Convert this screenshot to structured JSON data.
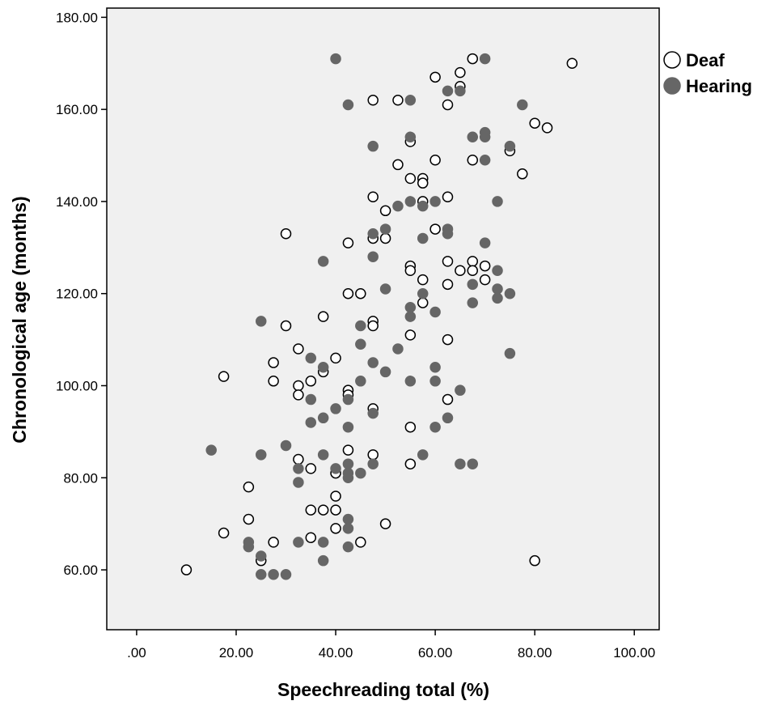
{
  "chart_data": {
    "type": "scatter",
    "title": "",
    "xlabel": "Speechreading total (%)",
    "ylabel": "Chronological age (months)",
    "xlim": [
      -6,
      105
    ],
    "ylim": [
      47,
      182
    ],
    "grid": false,
    "legend_position": "top-right (outside plot)",
    "x_ticks": [
      0,
      20,
      40,
      60,
      80,
      100
    ],
    "x_tick_labels": [
      ".00",
      "20.00",
      "40.00",
      "60.00",
      "80.00",
      "100.00"
    ],
    "y_ticks": [
      60,
      80,
      100,
      120,
      140,
      160,
      180
    ],
    "y_tick_labels": [
      "60.00",
      "80.00",
      "100.00",
      "120.00",
      "140.00",
      "160.00",
      "180.00"
    ],
    "plot_background": "#f0f0f0",
    "series": [
      {
        "name": "Deaf",
        "marker": "open-circle",
        "color": "#000000",
        "points": [
          [
            10,
            60
          ],
          [
            17.5,
            102
          ],
          [
            17.5,
            68
          ],
          [
            22.5,
            78
          ],
          [
            22.5,
            71
          ],
          [
            25,
            62
          ],
          [
            27.5,
            105
          ],
          [
            27.5,
            101
          ],
          [
            27.5,
            66
          ],
          [
            30,
            133
          ],
          [
            30,
            113
          ],
          [
            32.5,
            108
          ],
          [
            32.5,
            100
          ],
          [
            32.5,
            98
          ],
          [
            32.5,
            84
          ],
          [
            35,
            101
          ],
          [
            35,
            82
          ],
          [
            35,
            73
          ],
          [
            35,
            67
          ],
          [
            37.5,
            115
          ],
          [
            37.5,
            103
          ],
          [
            37.5,
            73
          ],
          [
            40,
            106
          ],
          [
            40,
            81
          ],
          [
            40,
            76
          ],
          [
            40,
            73
          ],
          [
            40,
            69
          ],
          [
            42.5,
            131
          ],
          [
            42.5,
            120
          ],
          [
            42.5,
            99
          ],
          [
            42.5,
            98
          ],
          [
            42.5,
            86
          ],
          [
            45,
            120
          ],
          [
            45,
            66
          ],
          [
            47.5,
            162
          ],
          [
            47.5,
            141
          ],
          [
            47.5,
            132
          ],
          [
            47.5,
            114
          ],
          [
            47.5,
            113
          ],
          [
            47.5,
            95
          ],
          [
            47.5,
            85
          ],
          [
            50,
            138
          ],
          [
            50,
            132
          ],
          [
            50,
            70
          ],
          [
            52.5,
            162
          ],
          [
            52.5,
            148
          ],
          [
            55,
            153
          ],
          [
            55,
            145
          ],
          [
            55,
            126
          ],
          [
            55,
            125
          ],
          [
            55,
            111
          ],
          [
            55,
            91
          ],
          [
            55,
            83
          ],
          [
            57.5,
            145
          ],
          [
            57.5,
            144
          ],
          [
            57.5,
            140
          ],
          [
            57.5,
            123
          ],
          [
            57.5,
            118
          ],
          [
            60,
            167
          ],
          [
            60,
            149
          ],
          [
            60,
            134
          ],
          [
            62.5,
            161
          ],
          [
            62.5,
            141
          ],
          [
            62.5,
            127
          ],
          [
            62.5,
            122
          ],
          [
            62.5,
            110
          ],
          [
            62.5,
            97
          ],
          [
            65,
            168
          ],
          [
            65,
            165
          ],
          [
            65,
            125
          ],
          [
            67.5,
            171
          ],
          [
            67.5,
            149
          ],
          [
            67.5,
            127
          ],
          [
            67.5,
            125
          ],
          [
            70,
            126
          ],
          [
            70,
            123
          ],
          [
            75,
            151
          ],
          [
            77.5,
            146
          ],
          [
            80,
            157
          ],
          [
            80,
            62
          ],
          [
            82.5,
            156
          ],
          [
            87.5,
            170
          ]
        ]
      },
      {
        "name": "Hearing",
        "marker": "filled-circle",
        "color": "#666666",
        "points": [
          [
            15,
            86
          ],
          [
            22.5,
            66
          ],
          [
            22.5,
            65
          ],
          [
            25,
            114
          ],
          [
            25,
            85
          ],
          [
            25,
            63
          ],
          [
            25,
            59
          ],
          [
            27.5,
            59
          ],
          [
            30,
            87
          ],
          [
            30,
            59
          ],
          [
            32.5,
            82
          ],
          [
            32.5,
            79
          ],
          [
            32.5,
            66
          ],
          [
            35,
            106
          ],
          [
            35,
            97
          ],
          [
            35,
            92
          ],
          [
            37.5,
            127
          ],
          [
            37.5,
            104
          ],
          [
            37.5,
            93
          ],
          [
            37.5,
            85
          ],
          [
            37.5,
            66
          ],
          [
            37.5,
            62
          ],
          [
            40,
            95
          ],
          [
            40,
            82
          ],
          [
            42.5,
            161
          ],
          [
            42.5,
            97
          ],
          [
            42.5,
            91
          ],
          [
            42.5,
            83
          ],
          [
            42.5,
            81
          ],
          [
            42.5,
            80
          ],
          [
            42.5,
            71
          ],
          [
            42.5,
            69
          ],
          [
            42.5,
            65
          ],
          [
            40,
            171
          ],
          [
            45,
            113
          ],
          [
            45,
            109
          ],
          [
            45,
            101
          ],
          [
            45,
            81
          ],
          [
            47.5,
            152
          ],
          [
            47.5,
            133
          ],
          [
            47.5,
            128
          ],
          [
            47.5,
            105
          ],
          [
            47.5,
            94
          ],
          [
            47.5,
            83
          ],
          [
            50,
            134
          ],
          [
            50,
            121
          ],
          [
            50,
            103
          ],
          [
            52.5,
            139
          ],
          [
            52.5,
            108
          ],
          [
            55,
            162
          ],
          [
            55,
            154
          ],
          [
            55,
            140
          ],
          [
            55,
            117
          ],
          [
            55,
            115
          ],
          [
            55,
            101
          ],
          [
            57.5,
            139
          ],
          [
            57.5,
            132
          ],
          [
            57.5,
            120
          ],
          [
            57.5,
            85
          ],
          [
            60,
            140
          ],
          [
            60,
            116
          ],
          [
            60,
            104
          ],
          [
            60,
            101
          ],
          [
            60,
            91
          ],
          [
            62.5,
            164
          ],
          [
            62.5,
            134
          ],
          [
            62.5,
            133
          ],
          [
            62.5,
            93
          ],
          [
            65,
            164
          ],
          [
            65,
            99
          ],
          [
            65,
            83
          ],
          [
            67.5,
            154
          ],
          [
            67.5,
            122
          ],
          [
            67.5,
            118
          ],
          [
            67.5,
            83
          ],
          [
            70,
            171
          ],
          [
            70,
            155
          ],
          [
            70,
            154
          ],
          [
            70,
            149
          ],
          [
            70,
            131
          ],
          [
            72.5,
            140
          ],
          [
            72.5,
            125
          ],
          [
            72.5,
            121
          ],
          [
            72.5,
            119
          ],
          [
            75,
            152
          ],
          [
            75,
            120
          ],
          [
            75,
            107
          ],
          [
            77.5,
            161
          ]
        ]
      }
    ]
  }
}
